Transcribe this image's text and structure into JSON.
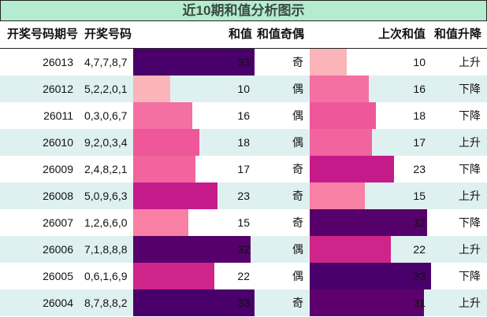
{
  "title": "近10期和值分析图示",
  "header": {
    "period": "开奖号码期号",
    "numbers": "开奖号码",
    "sum": "和值",
    "parity": "和值奇偶",
    "prev_sum": "上次和值",
    "trend": "和值升降"
  },
  "colors": {
    "title_bg": "#b3ecce",
    "row_alt_bg": "#dff0f0",
    "bar_10": "#fbb4b9",
    "bar_15": "#f880a5",
    "bar_16": "#f46fa2",
    "bar_17": "#f2649e",
    "bar_18": "#ee579a",
    "bar_22": "#cf2489",
    "bar_23": "#c51b8a",
    "bar_31": "#5d006e",
    "bar_32": "#56006c",
    "bar_33": "#49006a"
  },
  "rows": [
    {
      "period": "26013",
      "numbers": "4,7,7,8,7",
      "sum": "33",
      "parity": "奇",
      "prev_sum": "10",
      "trend": "上升"
    },
    {
      "period": "26012",
      "numbers": "5,2,2,0,1",
      "sum": "10",
      "parity": "偶",
      "prev_sum": "16",
      "trend": "下降"
    },
    {
      "period": "26011",
      "numbers": "0,3,0,6,7",
      "sum": "16",
      "parity": "偶",
      "prev_sum": "18",
      "trend": "下降"
    },
    {
      "period": "26010",
      "numbers": "9,2,0,3,4",
      "sum": "18",
      "parity": "偶",
      "prev_sum": "17",
      "trend": "上升"
    },
    {
      "period": "26009",
      "numbers": "2,4,8,2,1",
      "sum": "17",
      "parity": "奇",
      "prev_sum": "23",
      "trend": "下降"
    },
    {
      "period": "26008",
      "numbers": "5,0,9,6,3",
      "sum": "23",
      "parity": "奇",
      "prev_sum": "15",
      "trend": "上升"
    },
    {
      "period": "26007",
      "numbers": "1,2,6,6,0",
      "sum": "15",
      "parity": "奇",
      "prev_sum": "32",
      "trend": "下降"
    },
    {
      "period": "26006",
      "numbers": "7,1,8,8,8",
      "sum": "32",
      "parity": "偶",
      "prev_sum": "22",
      "trend": "上升"
    },
    {
      "period": "26005",
      "numbers": "0,6,1,6,9",
      "sum": "22",
      "parity": "偶",
      "prev_sum": "33",
      "trend": "下降"
    },
    {
      "period": "26004",
      "numbers": "8,7,8,8,2",
      "sum": "33",
      "parity": "奇",
      "prev_sum": "31",
      "trend": "上升"
    }
  ],
  "chart_data": {
    "type": "table",
    "title": "近10期和值分析图示",
    "columns": [
      "开奖号码期号",
      "开奖号码",
      "和值",
      "和值奇偶",
      "上次和值",
      "和值升降"
    ],
    "categories": [
      "26013",
      "26012",
      "26011",
      "26010",
      "26009",
      "26008",
      "26007",
      "26006",
      "26005",
      "26004"
    ],
    "series": [
      {
        "name": "和值",
        "values": [
          33,
          10,
          16,
          18,
          17,
          23,
          15,
          32,
          22,
          33
        ]
      },
      {
        "name": "上次和值",
        "values": [
          10,
          16,
          18,
          17,
          23,
          15,
          32,
          22,
          33,
          31
        ]
      }
    ],
    "numbers": [
      "4,7,7,8,7",
      "5,2,2,0,1",
      "0,3,0,6,7",
      "9,2,0,3,4",
      "2,4,8,2,1",
      "5,0,9,6,3",
      "1,2,6,6,0",
      "7,1,8,8,8",
      "0,6,1,6,9",
      "8,7,8,8,2"
    ],
    "parity": [
      "奇",
      "偶",
      "偶",
      "偶",
      "奇",
      "奇",
      "奇",
      "偶",
      "偶",
      "奇"
    ],
    "trend": [
      "上升",
      "下降",
      "下降",
      "上升",
      "下降",
      "上升",
      "下降",
      "上升",
      "下降",
      "上升"
    ],
    "bar_scale_max": 33
  }
}
